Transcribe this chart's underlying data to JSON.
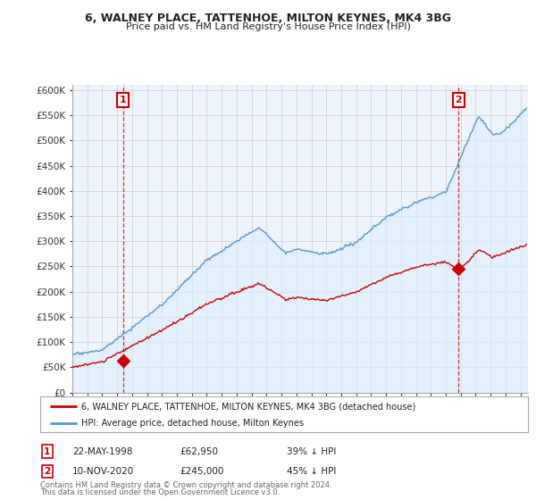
{
  "title": "6, WALNEY PLACE, TATTENHOE, MILTON KEYNES, MK4 3BG",
  "subtitle": "Price paid vs. HM Land Registry's House Price Index (HPI)",
  "ylabel_ticks": [
    "£0",
    "£50K",
    "£100K",
    "£150K",
    "£200K",
    "£250K",
    "£300K",
    "£350K",
    "£400K",
    "£450K",
    "£500K",
    "£550K",
    "£600K"
  ],
  "ytick_values": [
    0,
    50000,
    100000,
    150000,
    200000,
    250000,
    300000,
    350000,
    400000,
    450000,
    500000,
    550000,
    600000
  ],
  "ylim": [
    0,
    610000
  ],
  "xlim_start": 1995.0,
  "xlim_end": 2025.5,
  "sale1": {
    "date_num": 1998.38,
    "price": 62950,
    "label": "1",
    "date_str": "22-MAY-1998",
    "hpi_diff": "39% ↓ HPI"
  },
  "sale2": {
    "date_num": 2020.86,
    "price": 245000,
    "label": "2",
    "date_str": "10-NOV-2020",
    "hpi_diff": "45% ↓ HPI"
  },
  "legend_line1": "6, WALNEY PLACE, TATTENHOE, MILTON KEYNES, MK4 3BG (detached house)",
  "legend_line2": "HPI: Average price, detached house, Milton Keynes",
  "footer1": "Contains HM Land Registry data © Crown copyright and database right 2024.",
  "footer2": "This data is licensed under the Open Government Licence v3.0.",
  "sale_color": "#cc0000",
  "hpi_color": "#5599cc",
  "hpi_fill": "#ddeeff",
  "background_color": "#ffffff",
  "grid_color": "#cccccc"
}
